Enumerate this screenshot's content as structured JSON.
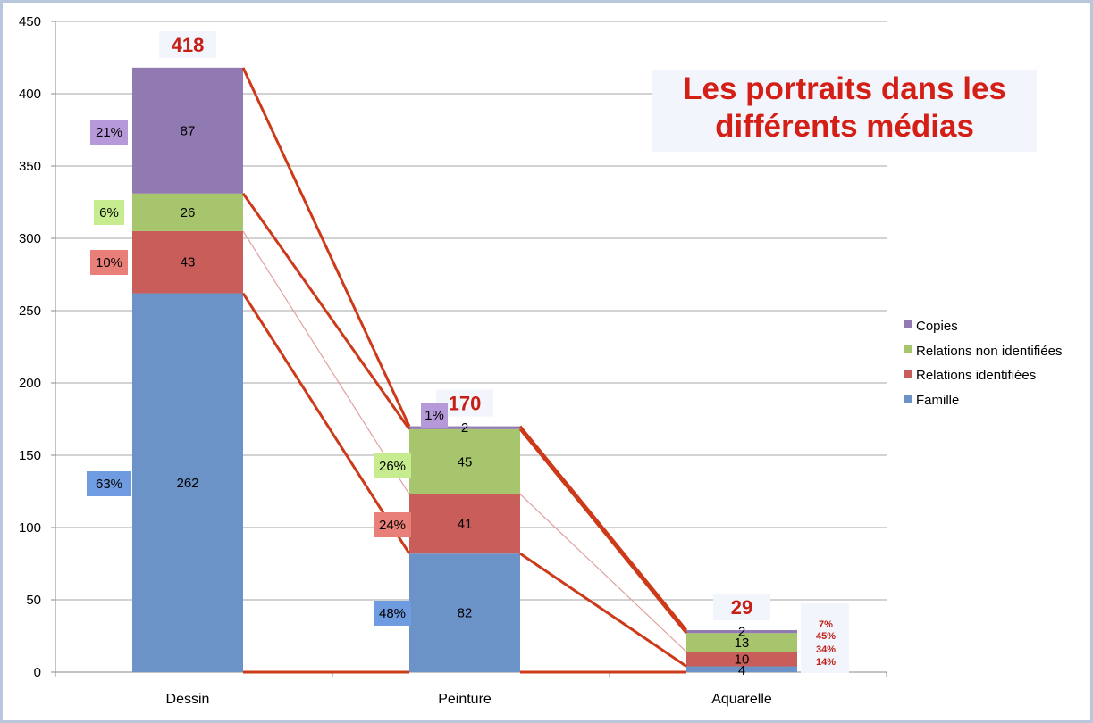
{
  "chart_data": {
    "type": "bar",
    "stacked": true,
    "title": "Les portraits dans les différents médias",
    "title_lines": [
      "Les portraits dans les",
      "différents médias"
    ],
    "categories": [
      "Dessin",
      "Peinture",
      "Aquarelle"
    ],
    "series": [
      {
        "name": "Famille",
        "color": "#6b93c8",
        "values": [
          262,
          82,
          4
        ]
      },
      {
        "name": "Relations identifiées",
        "color": "#c85d5a",
        "values": [
          43,
          41,
          10
        ]
      },
      {
        "name": "Relations non identifiées",
        "color": "#a6c56c",
        "values": [
          26,
          45,
          13
        ]
      },
      {
        "name": "Copies",
        "color": "#9179b2",
        "values": [
          87,
          2,
          2
        ]
      }
    ],
    "totals": [
      "418",
      "170",
      "29"
    ],
    "percent_labels": [
      [
        "63%",
        "10%",
        "6%",
        "21%"
      ],
      [
        "48%",
        "24%",
        "26%",
        "1%"
      ],
      [
        "14%",
        "34%",
        "45%",
        "7%"
      ]
    ],
    "percent_bg_colors": [
      "#6f9be0",
      "#e97f79",
      "#c7ec8f",
      "#b699d9"
    ],
    "yticks": [
      "0",
      "50",
      "100",
      "150",
      "200",
      "250",
      "300",
      "350",
      "400",
      "450"
    ],
    "ylim": [
      0,
      450
    ],
    "grid": true,
    "legend_position": "right",
    "connector_color": "#cc3a1a",
    "xlabel": "",
    "ylabel": ""
  }
}
